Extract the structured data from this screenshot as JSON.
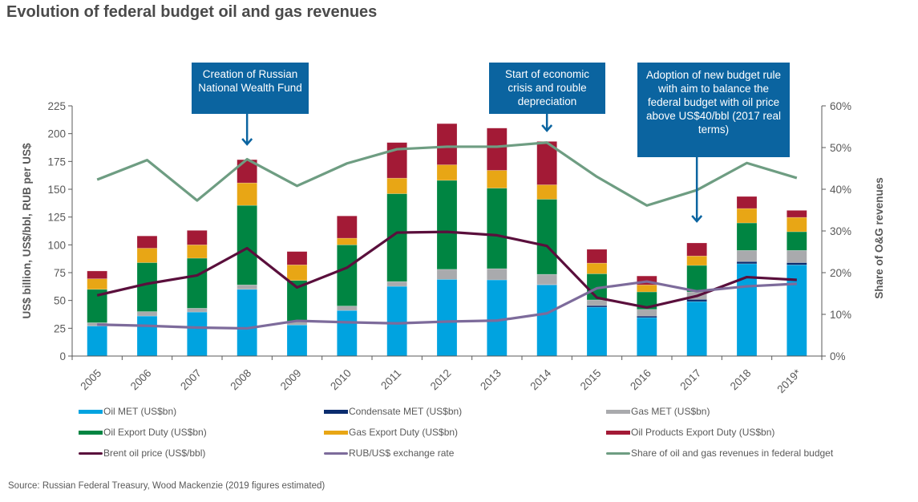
{
  "title": "Evolution of federal budget oil and gas revenues",
  "source": "Source: Russian Federal Treasury, Wood Mackenzie  (2019 figures estimated)",
  "callouts": [
    {
      "text": "Creation of Russian National Wealth Fund",
      "year": "2008"
    },
    {
      "text": "Start of economic crisis and rouble depreciation",
      "year": "2014"
    },
    {
      "text": "Adoption of new budget rule with aim to balance the federal budget with oil price above US$40/bbl (2017 real terms)",
      "year": "2017"
    }
  ],
  "colors": {
    "oil_met": "#00a3e0",
    "condensate_met": "#0b2c6e",
    "gas_met": "#a9aaad",
    "oil_export": "#008542",
    "gas_export": "#e8a615",
    "oil_products_export": "#a31a36",
    "brent": "#5a0f3c",
    "rub": "#7d6b9b",
    "share": "#6e9d82",
    "callout": "#0b64a0"
  },
  "chart_data": {
    "type": "bar",
    "title": "Evolution of federal budget oil and gas revenues",
    "categories": [
      "2005",
      "2006",
      "2007",
      "2008",
      "2009",
      "2010",
      "2011",
      "2012",
      "2013",
      "2014",
      "2015",
      "2016",
      "2017",
      "2018",
      "2019*"
    ],
    "ylabel": "US$ billion, US$/bbl, RUB per US$",
    "y2label": "Share of O&G revenues",
    "ylim": [
      0,
      225
    ],
    "yticks": [
      "0",
      "25",
      "50",
      "75",
      "100",
      "125",
      "150",
      "175",
      "200",
      "225"
    ],
    "y2lim": [
      0,
      60
    ],
    "y2ticks": [
      "0%",
      "10%",
      "20%",
      "30%",
      "40%",
      "50%",
      "60%"
    ],
    "grid": false,
    "legend_position": "bottom",
    "stacked_series": [
      {
        "key": "oil_met",
        "name": "Oil MET (US$bn)",
        "values": [
          27,
          36,
          39.6,
          60,
          28,
          41,
          62.7,
          69,
          68.5,
          64,
          44,
          34.6,
          49,
          83,
          82
        ]
      },
      {
        "key": "condensate_met",
        "name": "Condensate MET (US$bn)",
        "values": [
          0,
          0,
          0,
          0,
          0,
          0,
          0,
          0,
          0,
          0.3,
          1.4,
          1.4,
          2,
          2,
          2
        ]
      },
      {
        "key": "gas_met",
        "name": "Gas MET (US$bn)",
        "values": [
          3,
          4,
          3.4,
          4,
          3,
          4,
          4.3,
          9,
          10.1,
          9.2,
          5.1,
          6,
          6.7,
          10,
          11
        ]
      },
      {
        "key": "oil_export",
        "name": "Oil Export Duty (US$bn)",
        "values": [
          30,
          44,
          45,
          71.5,
          37,
          55,
          79,
          80,
          72.4,
          67.5,
          23.5,
          15.7,
          23.8,
          24.7,
          16.8
        ]
      },
      {
        "key": "gas_export",
        "name": "Gas Export Duty (US$bn)",
        "values": [
          9.5,
          13,
          12,
          20.2,
          14,
          6,
          14,
          14,
          16,
          13,
          9.6,
          6.3,
          8.5,
          13,
          12.9
        ]
      },
      {
        "key": "oil_products_export",
        "name": "Oil Products Export Duty (US$bn)",
        "values": [
          7,
          11,
          13,
          20.9,
          12,
          20,
          32,
          37,
          38,
          39,
          12.4,
          8,
          11.7,
          10.8,
          6.3
        ]
      }
    ],
    "line_series": [
      {
        "key": "brent",
        "name": "Brent oil price (US$/bbl)",
        "axis": "left",
        "values": [
          54.6,
          65,
          72.5,
          97,
          61.7,
          79.5,
          111,
          111.7,
          108.6,
          99,
          52.5,
          43.7,
          54,
          71,
          68.5
        ]
      },
      {
        "key": "rub",
        "name": "RUB/US$ exchange rate",
        "axis": "left",
        "values": [
          28.3,
          27.2,
          25.6,
          24.9,
          31.7,
          30.4,
          29.4,
          31,
          31.9,
          38.4,
          61,
          67,
          58.3,
          62.7,
          65
        ]
      },
      {
        "key": "share",
        "name": "Share of oil and gas revenues in federal budget",
        "axis": "right",
        "values": [
          42.3,
          47,
          37.3,
          47.2,
          40.8,
          46.2,
          49.6,
          50.2,
          50.2,
          51.2,
          43,
          36.1,
          39.8,
          46.3,
          42.7
        ]
      }
    ]
  }
}
